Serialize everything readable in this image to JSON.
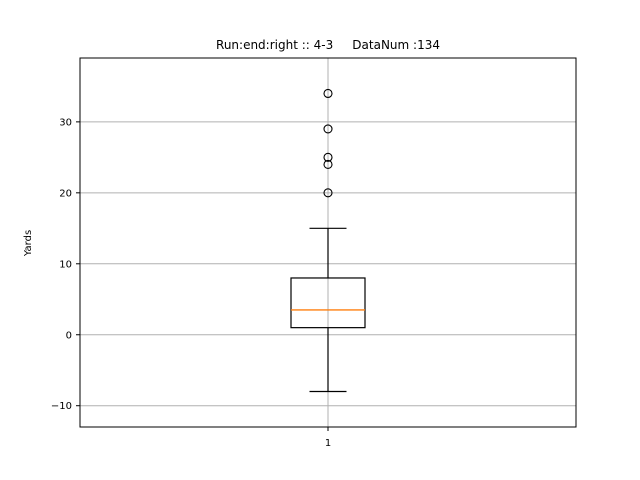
{
  "chart_data": {
    "type": "box",
    "title": "Run:end:right :: 4-3     DataNum :134",
    "xlabel": "",
    "ylabel": "Yards",
    "categories": [
      "1"
    ],
    "ylim": [
      -13,
      39
    ],
    "yticks": [
      -10,
      0,
      10,
      20,
      30
    ],
    "ytick_labels": [
      "−10",
      "0",
      "10",
      "20",
      "30"
    ],
    "grid": true,
    "boxes": [
      {
        "label": "1",
        "whisker_low": -8,
        "q1": 1,
        "median": 3.5,
        "q3": 8,
        "whisker_high": 15,
        "outliers": [
          20,
          24,
          25,
          29,
          34
        ]
      }
    ],
    "colors": {
      "box": "#000000",
      "median": "#ff7f0e",
      "grid": "#b0b0b0"
    }
  }
}
